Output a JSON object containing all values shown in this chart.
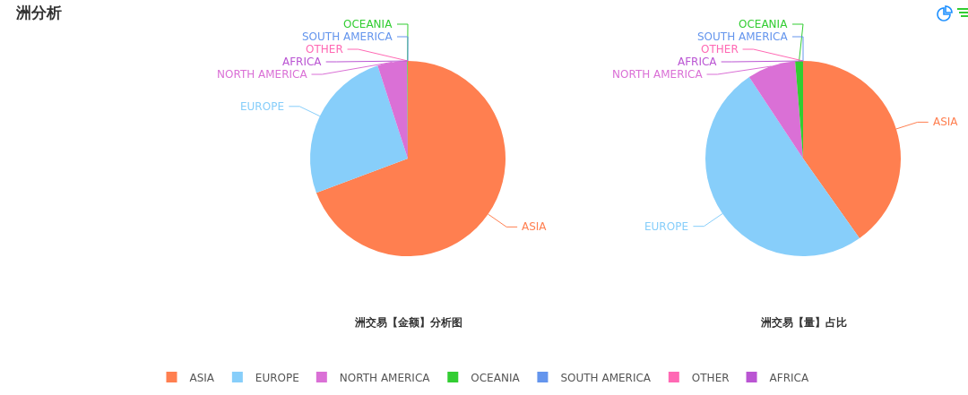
{
  "chart_data": [
    {
      "type": "other",
      "title": "洲分析"
    },
    {
      "type": "pie",
      "title": "洲交易【金额】分析图",
      "categories": [
        "ASIA",
        "EUROPE",
        "NORTH AMERICA",
        "OCEANIA",
        "SOUTH AMERICA",
        "OTHER",
        "AFRICA"
      ],
      "values": [
        69.3,
        25.7,
        4.9,
        0.1,
        0,
        0,
        0
      ],
      "colors": [
        "#ff7f50",
        "#87cefa",
        "#da70d6",
        "#32cd32",
        "#6495ed",
        "#ff69b4",
        "#ba55d3"
      ],
      "legend": "bottom"
    },
    {
      "type": "pie",
      "title": "洲交易【量】占比",
      "categories": [
        "ASIA",
        "EUROPE",
        "NORTH AMERICA",
        "OCEANIA",
        "SOUTH AMERICA",
        "OTHER",
        "AFRICA"
      ],
      "values": [
        40.2,
        50.5,
        8.0,
        1.3,
        0,
        0,
        0
      ],
      "colors": [
        "#ff7f50",
        "#87cefa",
        "#da70d6",
        "#32cd32",
        "#6495ed",
        "#ff69b4",
        "#ba55d3"
      ]
    }
  ]
}
